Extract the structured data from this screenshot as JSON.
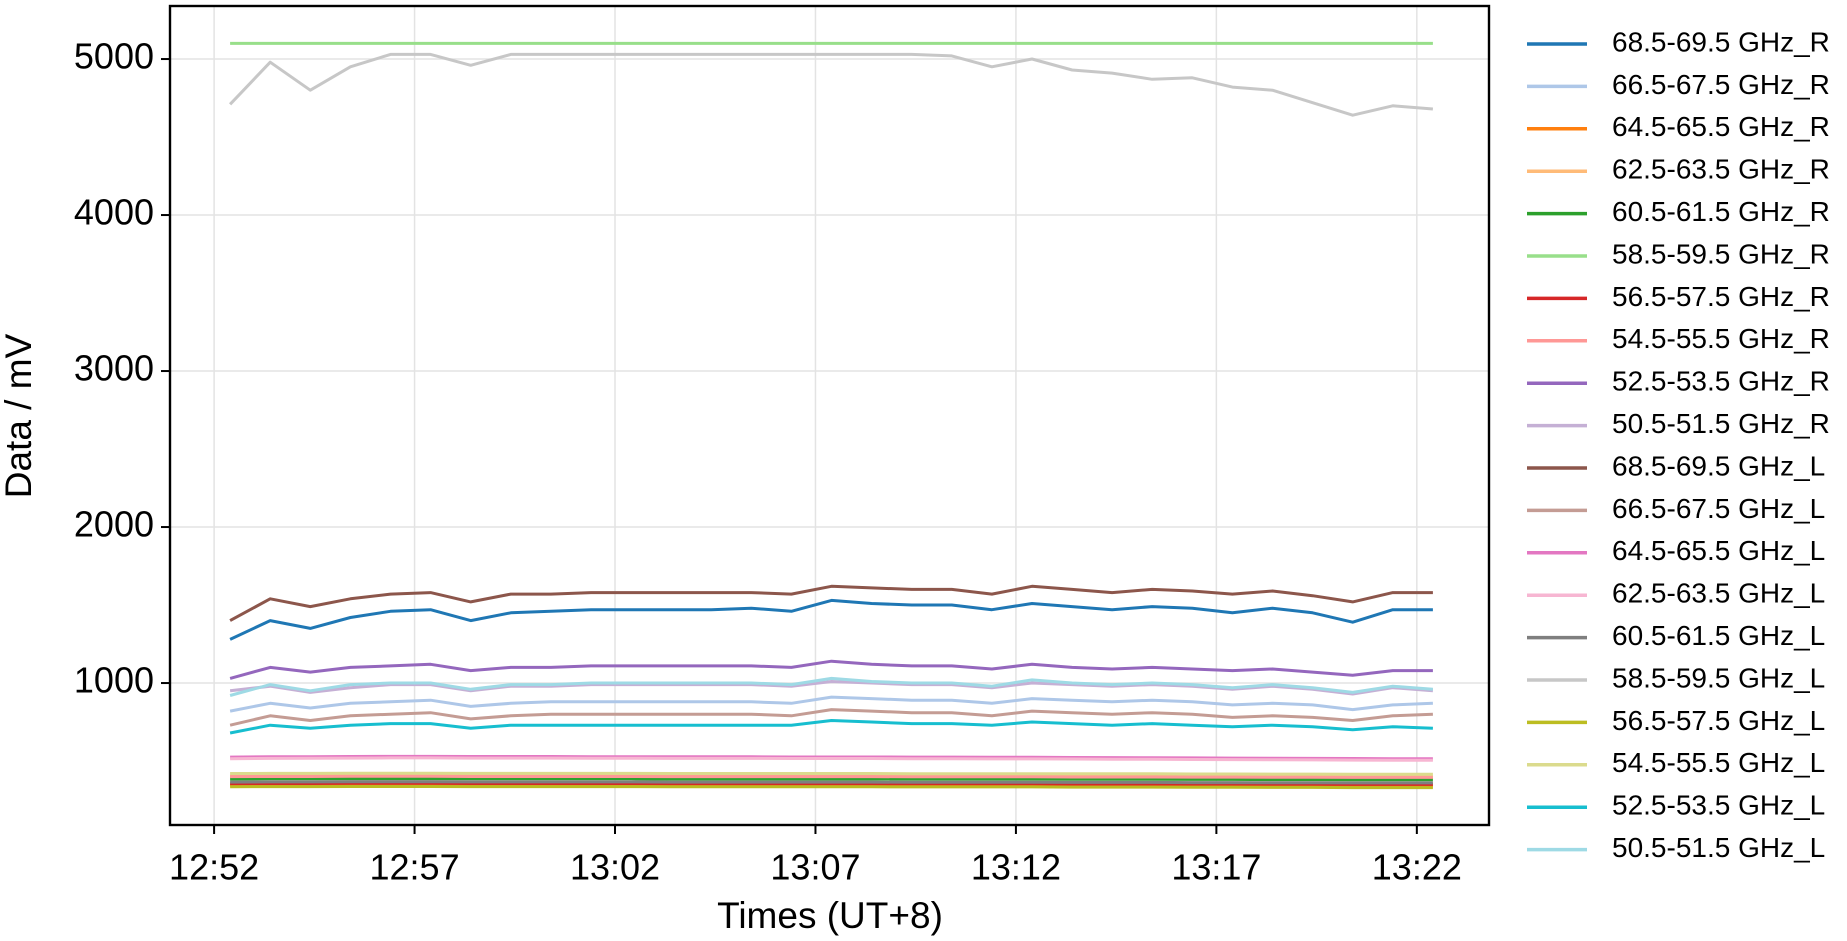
{
  "chart_data": {
    "type": "line",
    "xlabel": "Times (UT+8)",
    "ylabel": "Data / mV",
    "xlim": [
      770.9,
      803.8
    ],
    "ylim": [
      90,
      5340
    ],
    "xticks": [
      {
        "value": 772,
        "label": "12:52"
      },
      {
        "value": 777,
        "label": "12:57"
      },
      {
        "value": 782,
        "label": "13:02"
      },
      {
        "value": 787,
        "label": "13:07"
      },
      {
        "value": 792,
        "label": "13:12"
      },
      {
        "value": 797,
        "label": "13:17"
      },
      {
        "value": 802,
        "label": "13:22"
      }
    ],
    "yticks": [
      1000,
      2000,
      3000,
      4000,
      5000
    ],
    "grid": true,
    "legend": "outside-right",
    "x": [
      772.4,
      773.4,
      774.4,
      775.4,
      776.4,
      777.4,
      778.4,
      779.4,
      780.4,
      781.4,
      782.4,
      783.4,
      784.4,
      785.4,
      786.4,
      787.4,
      788.4,
      789.4,
      790.4,
      791.4,
      792.4,
      793.4,
      794.4,
      795.4,
      796.4,
      797.4,
      798.4,
      799.4,
      800.4,
      801.4,
      802.4
    ],
    "series": [
      {
        "name": "68.5-69.5 GHz_R",
        "color": "#1f77b4",
        "values": [
          1280,
          1400,
          1350,
          1420,
          1460,
          1470,
          1400,
          1450,
          1460,
          1470,
          1470,
          1470,
          1470,
          1480,
          1460,
          1530,
          1510,
          1500,
          1500,
          1470,
          1510,
          1490,
          1470,
          1490,
          1480,
          1450,
          1480,
          1450,
          1390,
          1470,
          1470
        ]
      },
      {
        "name": "66.5-67.5 GHz_R",
        "color": "#aec7e8",
        "values": [
          820,
          870,
          840,
          870,
          880,
          890,
          850,
          870,
          880,
          880,
          880,
          880,
          880,
          880,
          870,
          910,
          900,
          890,
          890,
          870,
          900,
          890,
          880,
          890,
          880,
          860,
          870,
          860,
          830,
          860,
          870
        ]
      },
      {
        "name": "64.5-65.5 GHz_R",
        "color": "#ff7f0e",
        "values": [
          345,
          346,
          346,
          347,
          347,
          347,
          346,
          346,
          346,
          346,
          346,
          345,
          345,
          345,
          345,
          345,
          345,
          344,
          344,
          344,
          344,
          343,
          343,
          343,
          342,
          342,
          341,
          341,
          340,
          340,
          340
        ]
      },
      {
        "name": "62.5-63.5 GHz_R",
        "color": "#ffbb78",
        "values": [
          405,
          406,
          406,
          407,
          407,
          407,
          406,
          406,
          406,
          406,
          406,
          405,
          405,
          405,
          405,
          405,
          405,
          404,
          404,
          404,
          404,
          403,
          403,
          403,
          402,
          402,
          401,
          401,
          400,
          400,
          400
        ]
      },
      {
        "name": "60.5-61.5 GHz_R",
        "color": "#2ca02c",
        "values": [
          385,
          386,
          386,
          387,
          387,
          387,
          386,
          386,
          386,
          386,
          386,
          385,
          385,
          385,
          385,
          385,
          385,
          384,
          384,
          384,
          384,
          383,
          383,
          383,
          382,
          382,
          381,
          381,
          380,
          380,
          380
        ]
      },
      {
        "name": "58.5-59.5 GHz_R",
        "color": "#98df8a",
        "values": [
          5100,
          5100,
          5100,
          5100,
          5100,
          5100,
          5100,
          5100,
          5100,
          5100,
          5100,
          5100,
          5100,
          5100,
          5100,
          5100,
          5100,
          5100,
          5100,
          5100,
          5100,
          5100,
          5100,
          5100,
          5100,
          5100,
          5100,
          5100,
          5100,
          5100,
          5100
        ]
      },
      {
        "name": "56.5-57.5 GHz_R",
        "color": "#d62728",
        "values": [
          355,
          356,
          356,
          357,
          357,
          357,
          356,
          356,
          356,
          356,
          356,
          355,
          355,
          355,
          355,
          355,
          355,
          354,
          354,
          354,
          354,
          353,
          353,
          353,
          352,
          352,
          351,
          351,
          350,
          350,
          350
        ]
      },
      {
        "name": "54.5-55.5 GHz_R",
        "color": "#ff9896",
        "values": [
          400,
          401,
          401,
          402,
          402,
          402,
          401,
          401,
          401,
          401,
          401,
          400,
          400,
          400,
          400,
          400,
          400,
          399,
          399,
          399,
          399,
          398,
          398,
          398,
          397,
          397,
          396,
          396,
          395,
          395,
          395
        ]
      },
      {
        "name": "52.5-53.5 GHz_R",
        "color": "#9467bd",
        "values": [
          1030,
          1100,
          1070,
          1100,
          1110,
          1120,
          1080,
          1100,
          1100,
          1110,
          1110,
          1110,
          1110,
          1110,
          1100,
          1140,
          1120,
          1110,
          1110,
          1090,
          1120,
          1100,
          1090,
          1100,
          1090,
          1080,
          1090,
          1070,
          1050,
          1080,
          1080
        ]
      },
      {
        "name": "50.5-51.5 GHz_R",
        "color": "#c5b0d5",
        "values": [
          950,
          980,
          940,
          970,
          990,
          990,
          950,
          980,
          980,
          990,
          990,
          990,
          990,
          990,
          980,
          1010,
          1000,
          990,
          990,
          970,
          1000,
          990,
          980,
          990,
          980,
          960,
          980,
          960,
          930,
          970,
          950
        ]
      },
      {
        "name": "68.5-69.5 GHz_L",
        "color": "#8c564b",
        "values": [
          1400,
          1540,
          1490,
          1540,
          1570,
          1580,
          1520,
          1570,
          1570,
          1580,
          1580,
          1580,
          1580,
          1580,
          1570,
          1620,
          1610,
          1600,
          1600,
          1570,
          1620,
          1600,
          1580,
          1600,
          1590,
          1570,
          1590,
          1560,
          1520,
          1580,
          1580
        ]
      },
      {
        "name": "66.5-67.5 GHz_L",
        "color": "#c49c94",
        "values": [
          730,
          790,
          760,
          790,
          800,
          810,
          770,
          790,
          800,
          800,
          800,
          800,
          800,
          800,
          790,
          830,
          820,
          810,
          810,
          790,
          820,
          810,
          800,
          810,
          800,
          780,
          790,
          780,
          760,
          790,
          800
        ]
      },
      {
        "name": "64.5-65.5 GHz_L",
        "color": "#e377c2",
        "values": [
          525,
          527,
          528,
          529,
          530,
          530,
          529,
          529,
          529,
          528,
          528,
          527,
          527,
          527,
          526,
          526,
          526,
          525,
          525,
          524,
          524,
          523,
          522,
          521,
          520,
          519,
          518,
          517,
          516,
          515,
          515
        ]
      },
      {
        "name": "62.5-63.5 GHz_L",
        "color": "#f7b6d2",
        "values": [
          515,
          517,
          518,
          519,
          520,
          520,
          519,
          519,
          519,
          518,
          518,
          517,
          517,
          517,
          516,
          516,
          516,
          515,
          515,
          514,
          514,
          513,
          512,
          511,
          510,
          509,
          508,
          507,
          506,
          505,
          505
        ]
      },
      {
        "name": "60.5-61.5 GHz_L",
        "color": "#7f7f7f",
        "values": [
          365,
          366,
          366,
          367,
          367,
          367,
          366,
          366,
          366,
          366,
          366,
          365,
          365,
          365,
          365,
          365,
          365,
          364,
          364,
          364,
          364,
          363,
          363,
          363,
          362,
          362,
          361,
          361,
          360,
          360,
          360
        ]
      },
      {
        "name": "58.5-59.5 GHz_L",
        "color": "#c7c7c7",
        "values": [
          4710,
          4980,
          4800,
          4950,
          5030,
          5030,
          4960,
          5030,
          5030,
          5030,
          5030,
          5030,
          5030,
          5030,
          5030,
          5030,
          5030,
          5030,
          5020,
          4950,
          5000,
          4930,
          4910,
          4870,
          4880,
          4820,
          4800,
          4720,
          4640,
          4700,
          4680
        ]
      },
      {
        "name": "56.5-57.5 GHz_L",
        "color": "#bcbd22",
        "values": [
          335,
          336,
          336,
          337,
          337,
          337,
          336,
          336,
          336,
          336,
          336,
          335,
          335,
          335,
          335,
          335,
          335,
          334,
          334,
          334,
          334,
          333,
          333,
          333,
          332,
          332,
          331,
          331,
          330,
          330,
          330
        ]
      },
      {
        "name": "54.5-55.5 GHz_L",
        "color": "#dbdb8d",
        "values": [
          420,
          421,
          421,
          422,
          422,
          422,
          421,
          421,
          421,
          421,
          421,
          420,
          420,
          420,
          420,
          420,
          420,
          419,
          419,
          419,
          419,
          418,
          418,
          418,
          417,
          417,
          416,
          416,
          415,
          415,
          415
        ]
      },
      {
        "name": "52.5-53.5 GHz_L",
        "color": "#17becf",
        "values": [
          680,
          730,
          710,
          730,
          740,
          740,
          710,
          730,
          730,
          730,
          730,
          730,
          730,
          730,
          730,
          760,
          750,
          740,
          740,
          730,
          750,
          740,
          730,
          740,
          730,
          720,
          730,
          720,
          700,
          720,
          710
        ]
      },
      {
        "name": "50.5-51.5 GHz_L",
        "color": "#9edae5",
        "values": [
          920,
          990,
          950,
          990,
          1000,
          1000,
          960,
          990,
          990,
          1000,
          1000,
          1000,
          1000,
          1000,
          990,
          1030,
          1010,
          1000,
          1000,
          980,
          1020,
          1000,
          990,
          1000,
          990,
          970,
          990,
          970,
          940,
          980,
          960
        ]
      }
    ]
  }
}
